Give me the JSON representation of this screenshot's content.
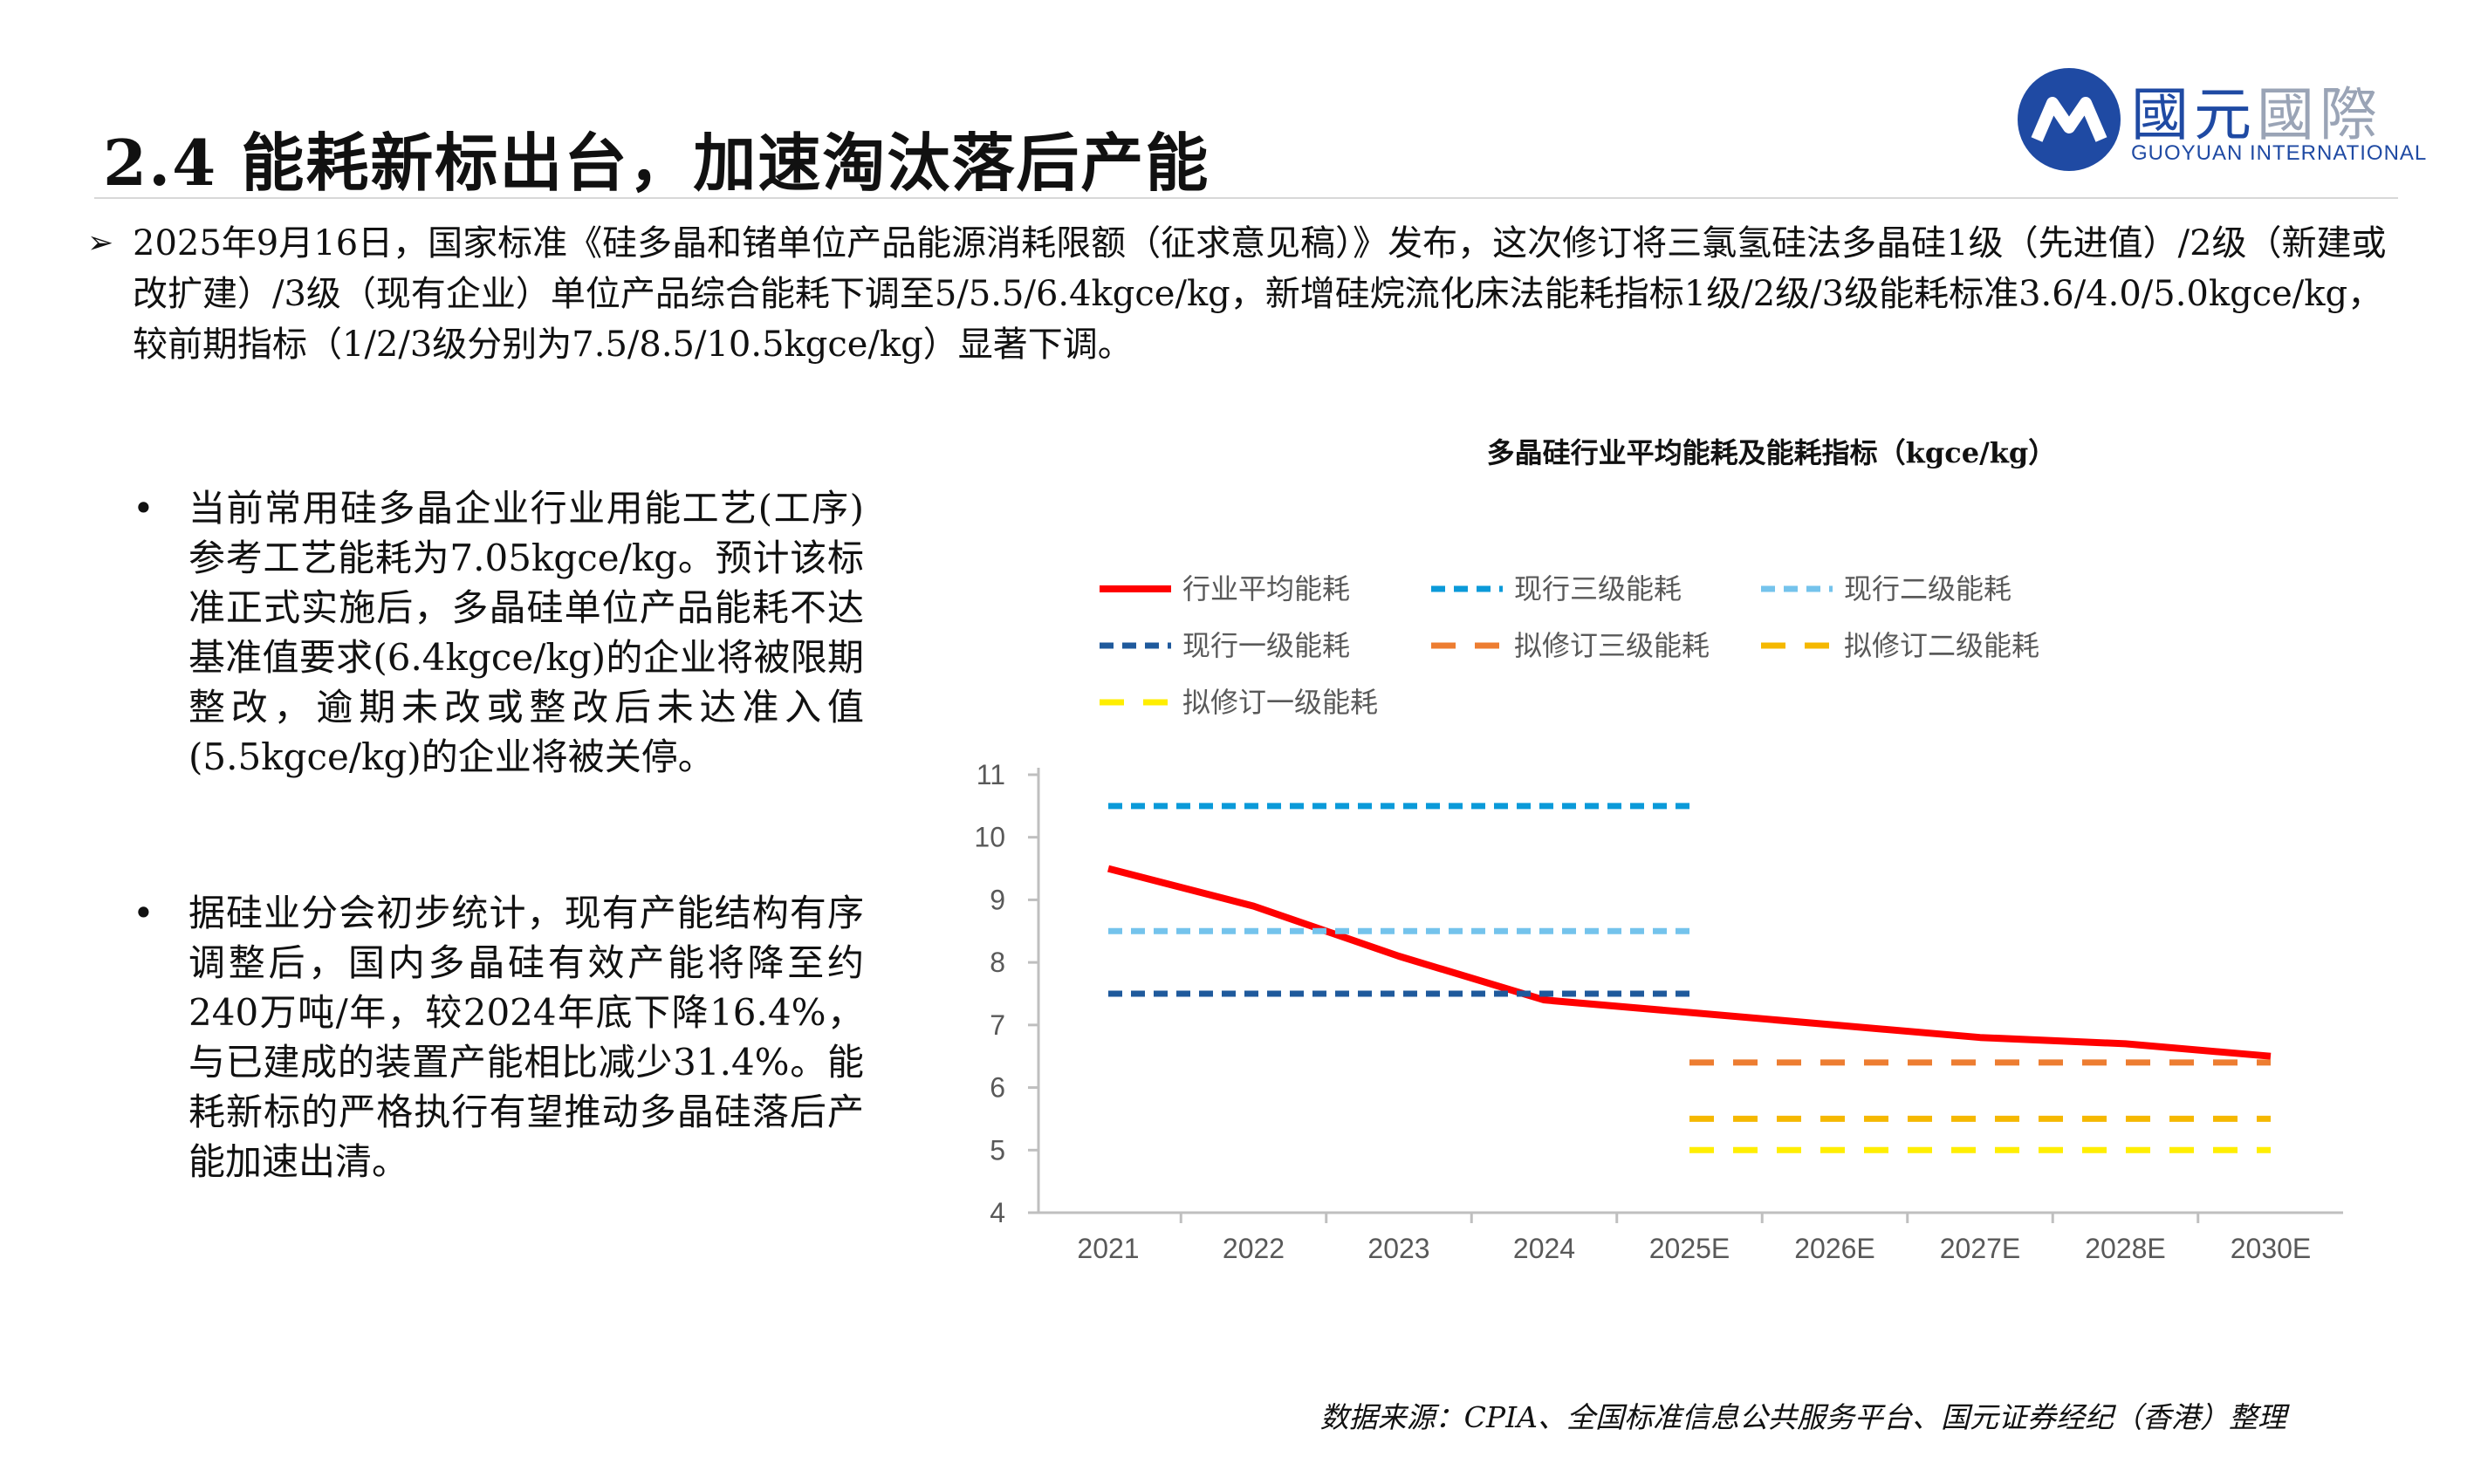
{
  "header": {
    "title": "2.4 能耗新标出台，加速淘汰落后产能",
    "logo_cn_bold": "國元",
    "logo_cn_light": "國際",
    "logo_en": "GUOYUAN INTERNATIONAL"
  },
  "top_bullet": {
    "marker": "➢",
    "text": "2025年9月16日，国家标准《硅多晶和锗单位产品能源消耗限额（征求意见稿）》发布，这次修订将三氯氢硅法多晶硅1级（先进值）/2级（新建或改扩建）/3级（现有企业）单位产品综合能耗下调至5/5.5/6.4kgce/kg，新增硅烷流化床法能耗指标1级/2级/3级能耗标准3.6/4.0/5.0kgce/kg，较前期指标（1/2/3级分别为7.5/8.5/10.5kgce/kg）显著下调。"
  },
  "side_bullets": [
    {
      "marker": "•",
      "text": "当前常用硅多晶企业行业用能工艺(工序)参考工艺能耗为7.05kgce/kg。预计该标准正式实施后，多晶硅单位产品能耗不达基准值要求(6.4kgce/kg)的企业将被限期整改，逾期未改或整改后未达准入值(5.5kgce/kg)的企业将被关停。"
    },
    {
      "marker": "•",
      "text": "据硅业分会初步统计，现有产能结构有序调整后，国内多晶硅有效产能将降至约240万吨/年，较2024年底下降16.4%，与已建成的装置产能相比减少31.4%。能耗新标的严格执行有望推动多晶硅落后产能加速出清。"
    }
  ],
  "source": "数据来源：CPIA、全国标准信息公共服务平台、国元证券经纪（香港）整理",
  "chart_data": {
    "type": "line",
    "title": "多晶硅行业平均能耗及能耗指标（kgce/kg）",
    "categories": [
      "2021",
      "2022",
      "2023",
      "2024",
      "2025E",
      "2026E",
      "2027E",
      "2028E",
      "2030E"
    ],
    "ylim": [
      4,
      11
    ],
    "yticks": [
      4,
      5,
      6,
      7,
      8,
      9,
      10,
      11
    ],
    "grid": false,
    "legend_position": "top",
    "series": [
      {
        "name": "行业平均能耗",
        "style": "solid",
        "color": "#ff0000",
        "values": [
          9.5,
          8.9,
          8.1,
          7.4,
          7.2,
          7.0,
          6.8,
          6.7,
          6.5
        ]
      },
      {
        "name": "现行三级能耗",
        "style": "dashed",
        "color": "#0b9ad9",
        "values": [
          10.5,
          10.5,
          10.5,
          10.5,
          10.5,
          null,
          null,
          null,
          null
        ]
      },
      {
        "name": "现行二级能耗",
        "style": "dashed",
        "color": "#74c3ec",
        "values": [
          8.5,
          8.5,
          8.5,
          8.5,
          8.5,
          null,
          null,
          null,
          null
        ]
      },
      {
        "name": "现行一级能耗",
        "style": "dashed",
        "color": "#1f5a9c",
        "values": [
          7.5,
          7.5,
          7.5,
          7.5,
          7.5,
          null,
          null,
          null,
          null
        ]
      },
      {
        "name": "拟修订三级能耗",
        "style": "dashed",
        "color": "#ed7d31",
        "values": [
          null,
          null,
          null,
          null,
          6.4,
          6.4,
          6.4,
          6.4,
          6.4
        ]
      },
      {
        "name": "拟修订二级能耗",
        "style": "dashed",
        "color": "#f5b800",
        "values": [
          null,
          null,
          null,
          null,
          5.5,
          5.5,
          5.5,
          5.5,
          5.5
        ]
      },
      {
        "name": "拟修订一级能耗",
        "style": "dashed",
        "color": "#ffee00",
        "values": [
          null,
          null,
          null,
          null,
          5.0,
          5.0,
          5.0,
          5.0,
          5.0
        ]
      }
    ]
  }
}
